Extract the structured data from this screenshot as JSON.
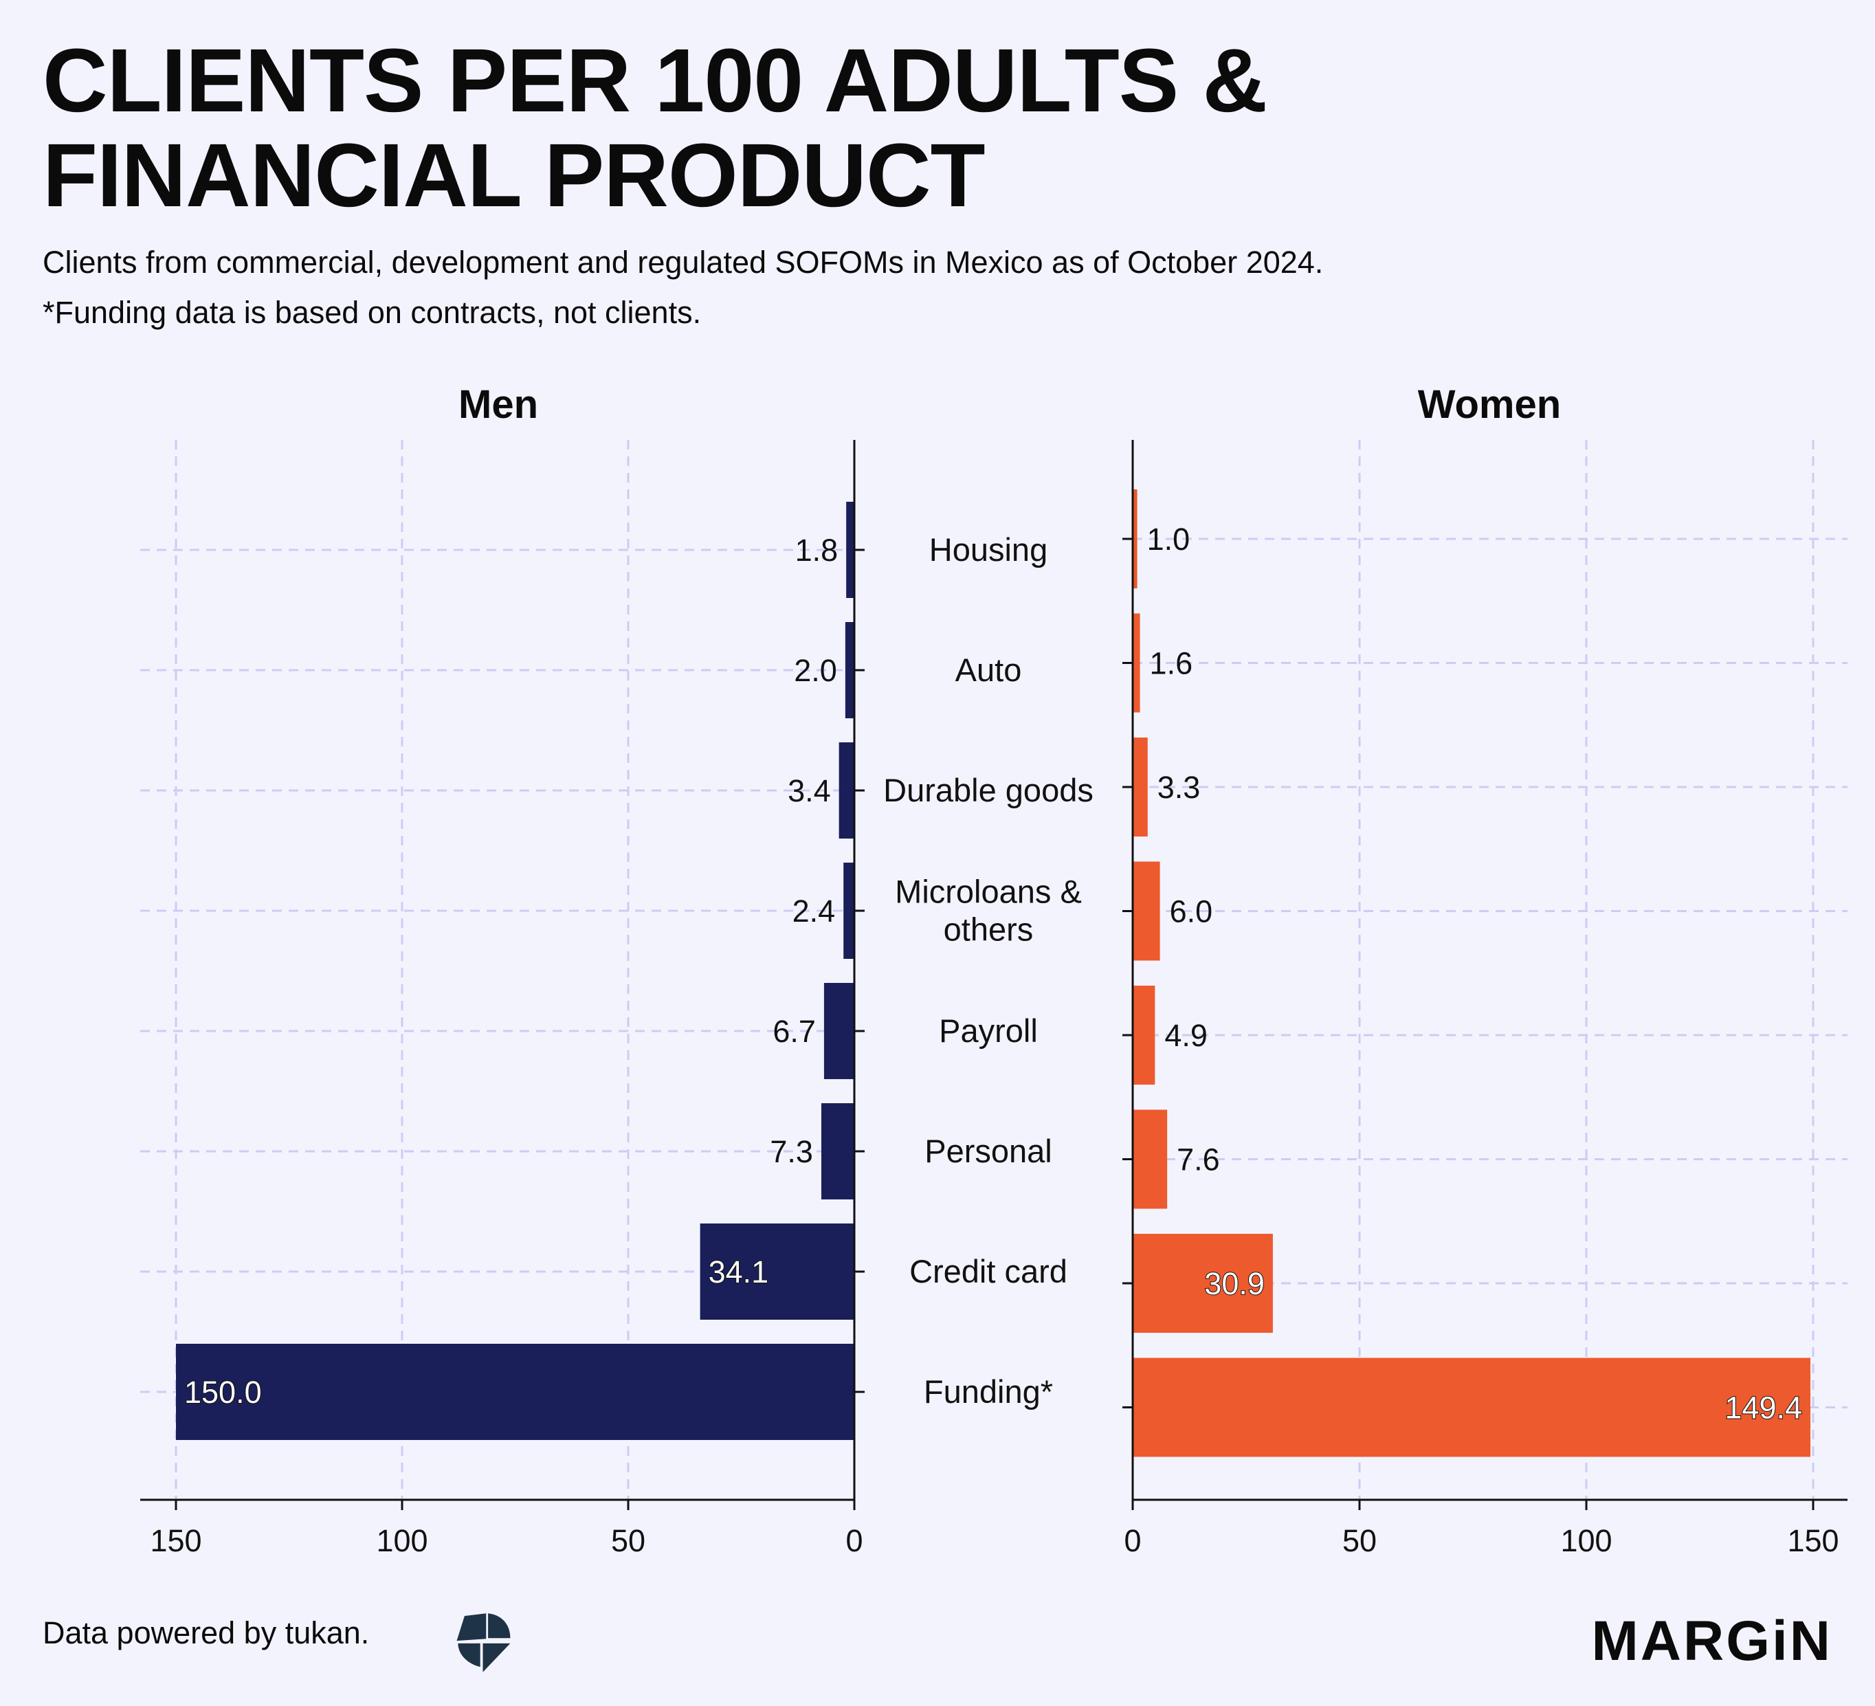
{
  "title_line1": "CLIENTS PER 100 ADULTS &",
  "title_line2": "FINANCIAL PRODUCT",
  "subtitle_line1": "Clients from commercial, development and regulated SOFOMs in Mexico as of October 2024.",
  "subtitle_line2": "*Funding data is based on contracts, not clients.",
  "footer": {
    "source": "Data powered by tukan.",
    "brand": "MARGiN",
    "logo": "tukan-logo-icon"
  },
  "colors": {
    "men": "#1a1f5a",
    "women": "#ed5a2e",
    "grid": "#cbcdf4",
    "background": "#f3f3fe"
  },
  "chart_data": {
    "type": "bar",
    "orientation": "horizontal",
    "layout": "back-to-back",
    "categories": [
      "Housing",
      "Auto",
      "Durable goods",
      "Microloans & others",
      "Payroll",
      "Personal",
      "Credit card",
      "Funding*"
    ],
    "category_lines": [
      [
        "Housing"
      ],
      [
        "Auto"
      ],
      [
        "Durable goods"
      ],
      [
        "Microloans &",
        "others"
      ],
      [
        "Payroll"
      ],
      [
        "Personal"
      ],
      [
        "Credit card"
      ],
      [
        "Funding*"
      ]
    ],
    "series": [
      {
        "name": "Men",
        "values": [
          1.8,
          2.0,
          3.4,
          2.4,
          6.7,
          7.3,
          34.1,
          150.0
        ],
        "labels": [
          "1.8",
          "2.0",
          "3.4",
          "2.4",
          "6.7",
          "7.3",
          "34.1",
          "150.0"
        ]
      },
      {
        "name": "Women",
        "values": [
          1.0,
          1.6,
          3.3,
          6.0,
          4.9,
          7.6,
          30.9,
          149.4
        ],
        "labels": [
          "1.0",
          "1.6",
          "3.3",
          "6.0",
          "4.9",
          "7.6",
          "30.9",
          "149.4"
        ]
      }
    ],
    "xlim": [
      0,
      150
    ],
    "xticks": [
      0,
      50,
      100,
      150
    ],
    "xtick_labels": [
      "0",
      "50",
      "100",
      "150"
    ],
    "men_axis_reversed": true,
    "grid": true
  }
}
